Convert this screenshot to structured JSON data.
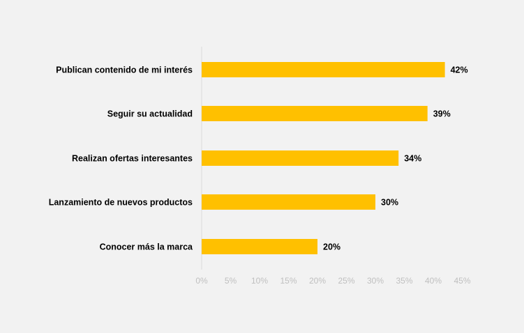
{
  "chart_data": {
    "type": "bar",
    "orientation": "horizontal",
    "categories": [
      "Publican contenido de mi interés",
      "Seguir su actualidad",
      "Realizan ofertas interesantes",
      "Lanzamiento de nuevos productos",
      "Conocer más la marca"
    ],
    "values": [
      42,
      39,
      34,
      30,
      20
    ],
    "data_labels": [
      "42%",
      "39%",
      "34%",
      "30%",
      "20%"
    ],
    "x_ticks": [
      "0%",
      "5%",
      "10%",
      "15%",
      "20%",
      "25%",
      "30%",
      "35%",
      "40%",
      "45%"
    ],
    "xlim": [
      0,
      45
    ],
    "grid": false,
    "legend": "none",
    "colors": {
      "bar": "#ffc000",
      "axis": "#d9d9d9",
      "tick_text": "#bfbfbf",
      "label_text": "#000000",
      "background": "#f2f2f2"
    }
  }
}
